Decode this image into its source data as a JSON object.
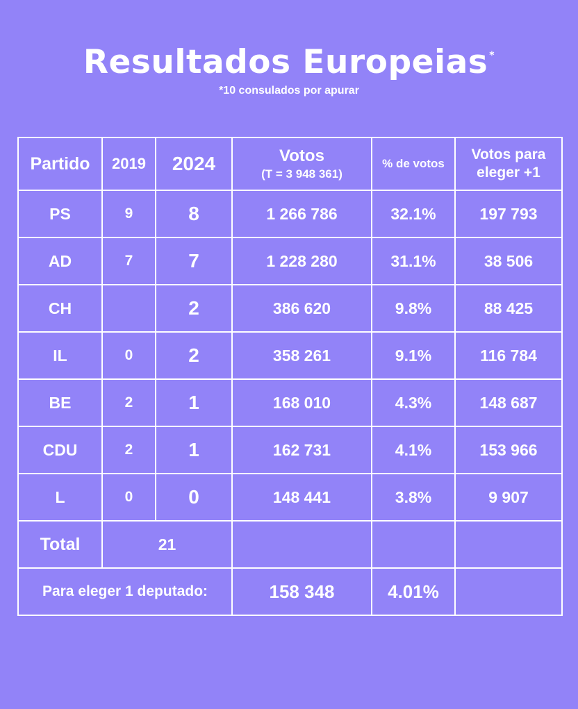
{
  "header": {
    "title": "Resultados Europeias",
    "title_marker": "*",
    "subtitle": "*10 consulados por apurar"
  },
  "table": {
    "columns": {
      "partido": "Partido",
      "y2019": "2019",
      "y2024": "2024",
      "votos": "Votos",
      "votos_total": "(T = 3 948 361)",
      "pct": "% de votos",
      "eleger": "Votos para eleger +1"
    },
    "rows": [
      {
        "party": "PS",
        "y2019": "9",
        "y2024": "8",
        "votes": "1 266 786",
        "pct": "32.1%",
        "to_elect": "197 793"
      },
      {
        "party": "AD",
        "y2019": "7",
        "y2024": "7",
        "votes": "1 228 280",
        "pct": "31.1%",
        "to_elect": "38 506"
      },
      {
        "party": "CH",
        "y2019": "",
        "y2024": "2",
        "votes": "386 620",
        "pct": "9.8%",
        "to_elect": "88 425"
      },
      {
        "party": "IL",
        "y2019": "0",
        "y2024": "2",
        "votes": "358 261",
        "pct": "9.1%",
        "to_elect": "116 784"
      },
      {
        "party": "BE",
        "y2019": "2",
        "y2024": "1",
        "votes": "168 010",
        "pct": "4.3%",
        "to_elect": "148 687"
      },
      {
        "party": "CDU",
        "y2019": "2",
        "y2024": "1",
        "votes": "162 731",
        "pct": "4.1%",
        "to_elect": "153 966"
      },
      {
        "party": "L",
        "y2019": "0",
        "y2024": "0",
        "votes": "148 441",
        "pct": "3.8%",
        "to_elect": "9 907"
      }
    ],
    "total": {
      "label": "Total",
      "value": "21"
    },
    "para_eleger": {
      "label": "Para eleger 1 deputado:",
      "votes": "158 348",
      "pct": "4.01%"
    }
  },
  "colors": {
    "background": "#9283f8",
    "text": "#ffffff",
    "border": "#ffffff"
  }
}
